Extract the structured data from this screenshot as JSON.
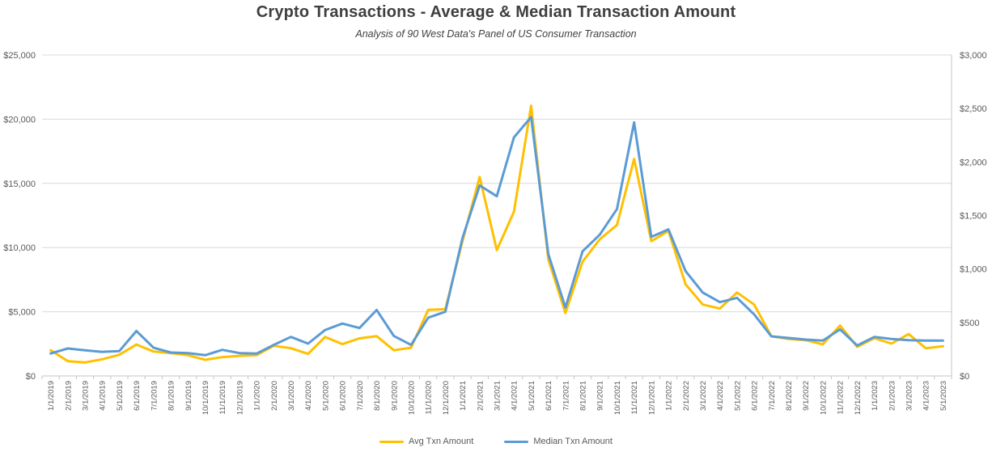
{
  "chart": {
    "title": "Crypto Transactions - Average & Median Transaction Amount",
    "subtitle": "Analysis of 90 West Data's Panel of US Consumer Transaction"
  },
  "chart_data": {
    "type": "line",
    "title": "Crypto Transactions - Average & Median Transaction Amount",
    "subtitle": "Analysis of 90 West Data's Panel of US Consumer Transaction",
    "grid": true,
    "legend_position": "bottom",
    "x": [
      "1/1/2019",
      "2/1/2019",
      "3/1/2019",
      "4/1/2019",
      "5/1/2019",
      "6/1/2019",
      "7/1/2019",
      "8/1/2019",
      "9/1/2019",
      "10/1/2019",
      "11/1/2019",
      "12/1/2019",
      "1/1/2020",
      "2/1/2020",
      "3/1/2020",
      "4/1/2020",
      "5/1/2020",
      "6/1/2020",
      "7/1/2020",
      "8/1/2020",
      "9/1/2020",
      "10/1/2020",
      "11/1/2020",
      "12/1/2020",
      "1/1/2021",
      "2/1/2021",
      "3/1/2021",
      "4/1/2021",
      "5/1/2021",
      "6/1/2021",
      "7/1/2021",
      "8/1/2021",
      "9/1/2021",
      "10/1/2021",
      "11/1/2021",
      "12/1/2021",
      "1/1/2022",
      "2/1/2022",
      "3/1/2022",
      "4/1/2022",
      "5/1/2022",
      "6/1/2022",
      "7/1/2022",
      "8/1/2022",
      "9/1/2022",
      "10/1/2022",
      "11/1/2022",
      "12/1/2022",
      "1/1/2023",
      "2/1/2023",
      "3/1/2023",
      "4/1/2023",
      "5/1/2023"
    ],
    "series": [
      {
        "name": "Avg Txn Amount",
        "axis": "left",
        "color": "#FFC000",
        "values": [
          2000,
          1150,
          1050,
          1300,
          1650,
          2450,
          1900,
          1780,
          1620,
          1260,
          1470,
          1570,
          1620,
          2350,
          2160,
          1720,
          3040,
          2480,
          2930,
          3100,
          2000,
          2200,
          5150,
          5200,
          10500,
          15500,
          9800,
          12800,
          21050,
          9100,
          4900,
          8900,
          10640,
          11760,
          16900,
          10500,
          11300,
          7140,
          5560,
          5250,
          6500,
          5560,
          3090,
          2880,
          2790,
          2460,
          3930,
          2270,
          2940,
          2520,
          3260,
          2160,
          2310
        ]
      },
      {
        "name": "Median Txn Amount",
        "axis": "right",
        "color": "#5B9BD5",
        "values": [
          210,
          257,
          240,
          225,
          232,
          420,
          264,
          219,
          214,
          194,
          244,
          214,
          209,
          290,
          365,
          302,
          430,
          490,
          448,
          617,
          373,
          290,
          545,
          600,
          1290,
          1780,
          1680,
          2230,
          2420,
          1140,
          640,
          1165,
          1320,
          1560,
          2370,
          1300,
          1370,
          980,
          780,
          690,
          730,
          575,
          370,
          355,
          340,
          330,
          435,
          285,
          365,
          345,
          335,
          330,
          330
        ]
      }
    ],
    "left_axis": {
      "range": [
        0,
        25000
      ],
      "ticks": [
        0,
        5000,
        10000,
        15000,
        20000,
        25000
      ],
      "labels": [
        "$0",
        "$5,000",
        "$10,000",
        "$15,000",
        "$20,000",
        "$25,000"
      ]
    },
    "right_axis": {
      "range": [
        0,
        3000
      ],
      "ticks": [
        0,
        500,
        1000,
        1500,
        2000,
        2500,
        3000
      ],
      "labels": [
        "$0",
        "$500",
        "$1,000",
        "$1,500",
        "$2,000",
        "$2,500",
        "$3,000"
      ]
    }
  },
  "legend": {
    "items": [
      {
        "label": "Avg Txn Amount",
        "color": "#FFC000"
      },
      {
        "label": "Median Txn Amount",
        "color": "#5B9BD5"
      }
    ]
  },
  "colors": {
    "avg_series": "#FFC000",
    "median_series": "#5B9BD5",
    "gridline": "#D9D9D9",
    "axis_line": "#C6C6C6",
    "axis_text": "#595959",
    "title_text": "#3F3F3F"
  }
}
